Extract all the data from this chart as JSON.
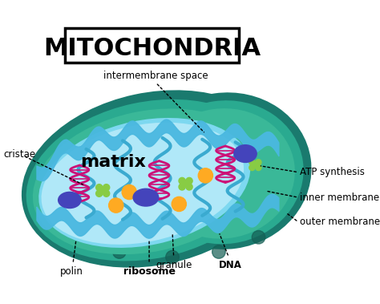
{
  "title": "MITOCHONDRIA",
  "bg_color": "#ffffff",
  "outer_dark": "#1a7a6e",
  "outer_mid": "#2aaa90",
  "intermembrane_green": "#3ab898",
  "inner_blue_dark": "#3ab0d8",
  "matrix_blue": "#7dd8f0",
  "matrix_light": "#b0e8f8",
  "cristae_blue": "#4ab8e0",
  "wave_dark": "#2288bb",
  "dna_color": "#cc1177",
  "ribosome_color": "#88cc44",
  "granule_color": "#ffaa22",
  "purple_color": "#5555aa",
  "blue_oval_color": "#4444bb",
  "dot_color": "#2a7a6e",
  "labels": {
    "intermembrane_space": "intermembrane space",
    "matrix": "matrix",
    "cristae": "cristae",
    "atp_synthesis": "ATP synthesis",
    "inner_membrane": "inner membrane",
    "outer_membrane": "outer membrane",
    "dna": "DNA",
    "granule": "granule",
    "ribosome": "ribosome",
    "polin": "polin"
  }
}
